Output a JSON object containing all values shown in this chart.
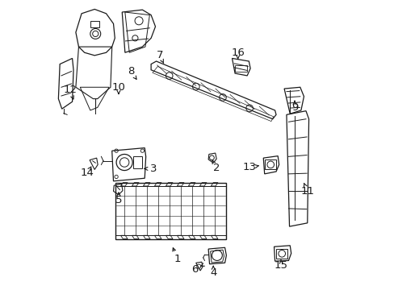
{
  "background_color": "#ffffff",
  "line_color": "#1a1a1a",
  "figsize": [
    4.89,
    3.6
  ],
  "dpi": 100,
  "label_positions": {
    "1": [
      0.43,
      0.105,
      0.41,
      0.16
    ],
    "2": [
      0.565,
      0.42,
      0.548,
      0.455
    ],
    "3": [
      0.348,
      0.418,
      0.308,
      0.418
    ],
    "4": [
      0.555,
      0.058,
      0.555,
      0.09
    ],
    "5": [
      0.228,
      0.31,
      0.228,
      0.345
    ],
    "6": [
      0.492,
      0.07,
      0.515,
      0.082
    ],
    "7": [
      0.37,
      0.81,
      0.39,
      0.77
    ],
    "8": [
      0.27,
      0.755,
      0.295,
      0.72
    ],
    "9": [
      0.836,
      0.63,
      0.836,
      0.66
    ],
    "10": [
      0.228,
      0.7,
      0.228,
      0.668
    ],
    "11": [
      0.88,
      0.34,
      0.865,
      0.375
    ],
    "12": [
      0.06,
      0.69,
      0.075,
      0.65
    ],
    "13": [
      0.68,
      0.422,
      0.72,
      0.43
    ],
    "14": [
      0.12,
      0.405,
      0.138,
      0.432
    ],
    "15": [
      0.79,
      0.082,
      0.788,
      0.11
    ],
    "16": [
      0.64,
      0.82,
      0.64,
      0.79
    ]
  }
}
